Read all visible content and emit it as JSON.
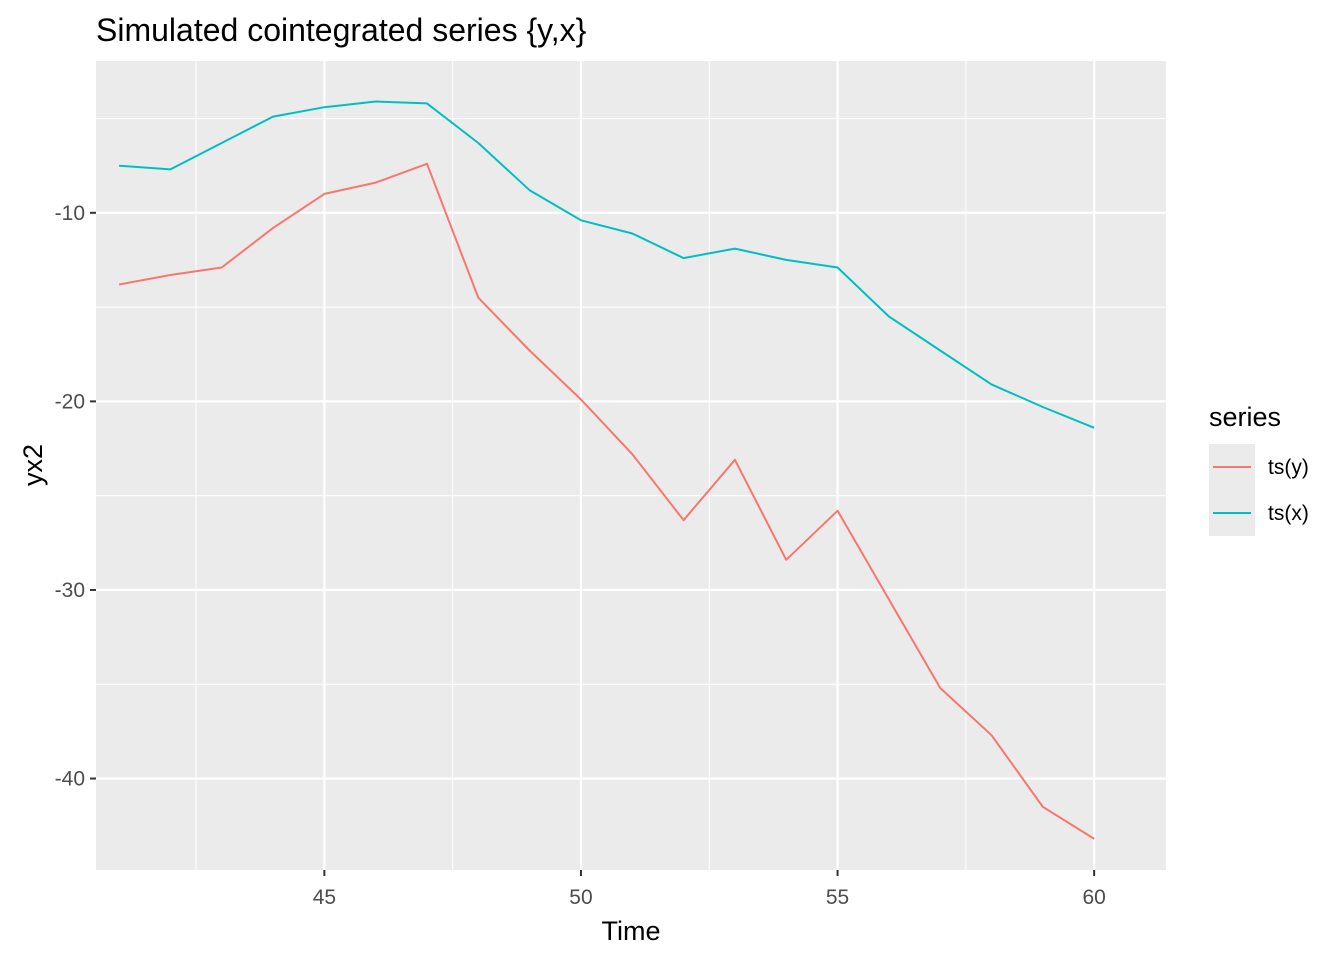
{
  "chart_data": {
    "type": "line",
    "title": "Simulated cointegrated series {y,x}",
    "xlabel": "Time",
    "ylabel": "yx2",
    "x": [
      41,
      42,
      43,
      44,
      45,
      46,
      47,
      48,
      49,
      50,
      51,
      52,
      53,
      54,
      55,
      56,
      57,
      58,
      59,
      60
    ],
    "xlim": [
      40.55,
      61.4
    ],
    "ylim": [
      -44.85,
      -1.95
    ],
    "xticks": [
      45,
      50,
      55,
      60
    ],
    "xtick_labels": [
      "45",
      "50",
      "55",
      "60"
    ],
    "yticks": [
      -10,
      -20,
      -30,
      -40
    ],
    "ytick_labels": [
      "-10",
      "-20",
      "-30",
      "-40"
    ],
    "grid": true,
    "legend": {
      "title": "series",
      "position": "right"
    },
    "series": [
      {
        "name": "ts(y)",
        "color": "#F8766D",
        "values": [
          -13.8,
          -13.3,
          -12.9,
          -10.8,
          -9.0,
          -8.4,
          -7.4,
          -14.5,
          -17.3,
          -19.9,
          -22.8,
          -26.3,
          -23.1,
          -28.4,
          -25.8,
          -30.5,
          -35.2,
          -37.7,
          -41.5,
          -43.2
        ]
      },
      {
        "name": "ts(x)",
        "color": "#00BFC4",
        "values": [
          -7.5,
          -7.7,
          -6.3,
          -4.9,
          -4.4,
          -4.1,
          -4.2,
          -6.3,
          -8.8,
          -10.4,
          -11.1,
          -12.4,
          -11.9,
          -12.5,
          -12.9,
          -15.5,
          -17.3,
          -19.1,
          -20.3,
          -21.4
        ]
      }
    ]
  }
}
